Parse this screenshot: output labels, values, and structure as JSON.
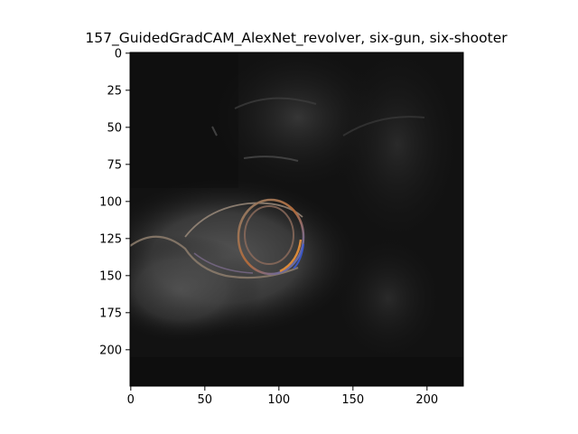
{
  "figure": {
    "title": "157_GuidedGradCAM_AlexNet_revolver, six-gun, six-shooter"
  },
  "axes": {
    "xlim": [
      0,
      224
    ],
    "ylim": [
      224,
      0
    ],
    "xticks": [
      {
        "value": 0,
        "label": "0"
      },
      {
        "value": 50,
        "label": "50"
      },
      {
        "value": 100,
        "label": "100"
      },
      {
        "value": 150,
        "label": "150"
      },
      {
        "value": 200,
        "label": "200"
      }
    ],
    "yticks": [
      {
        "value": 0,
        "label": "0"
      },
      {
        "value": 25,
        "label": "25"
      },
      {
        "value": 50,
        "label": "50"
      },
      {
        "value": 75,
        "label": "75"
      },
      {
        "value": 100,
        "label": "100"
      },
      {
        "value": 125,
        "label": "125"
      },
      {
        "value": 150,
        "label": "150"
      },
      {
        "value": 175,
        "label": "175"
      },
      {
        "value": 200,
        "label": "200"
      }
    ]
  },
  "image": {
    "description_colors": {
      "background": "#0e0e0e",
      "bright_region": "#4a4a4a",
      "highlight_orange": "#d98a3a",
      "highlight_blue": "#3a5ad9"
    }
  }
}
